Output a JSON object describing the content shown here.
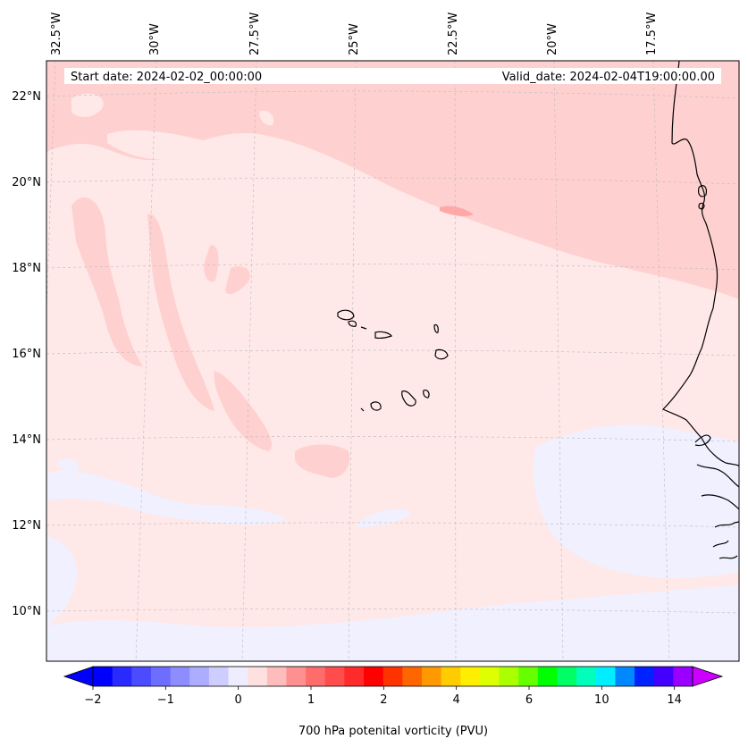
{
  "header": {
    "start_date": "Start date: 2024-02-02_00:00:00",
    "valid_date": "Valid_date: 2024-02-04T19:00:00.00"
  },
  "map": {
    "longitude_labels": [
      "32.5°W",
      "30°W",
      "27.5°W",
      "25°W",
      "22.5°W",
      "20°W",
      "17.5°W"
    ],
    "latitude_labels": [
      "22°N",
      "20°N",
      "18°N",
      "16°N",
      "14°N",
      "12°N",
      "10°N"
    ],
    "field": "700 hPa potential vorticity",
    "colors": {
      "background_low": "#ffe8e8",
      "band_medium": "#ffd0d0",
      "band_high": "#ffa8a8",
      "negative_patch": "#f0f0ff",
      "coastline": "#000000",
      "gridline": "#bbbbbb"
    }
  },
  "colorbar": {
    "label": "700 hPa potenital vorticity (PVU)",
    "tick_labels": [
      "−2",
      "−1",
      "0",
      "1",
      "2",
      "4",
      "6",
      "10",
      "14"
    ],
    "colors": [
      "#0000ff",
      "#2a2aff",
      "#4b4bff",
      "#6d6dff",
      "#8d8dff",
      "#adadff",
      "#cdcdff",
      "#ededff",
      "#ffe0e0",
      "#ffbcbc",
      "#ff9090",
      "#ff6c6c",
      "#ff4c4c",
      "#ff2a2a",
      "#ff0000",
      "#ff3300",
      "#ff6600",
      "#ff9900",
      "#ffcc00",
      "#ffee00",
      "#ddff00",
      "#aaff00",
      "#66ff00",
      "#00ff00",
      "#00ff66",
      "#00ffbb",
      "#00eeff",
      "#0088ff",
      "#0022ff",
      "#4400ff",
      "#9900ff"
    ],
    "extend_min_color": "#0000ff",
    "extend_max_color": "#cc00ff"
  }
}
